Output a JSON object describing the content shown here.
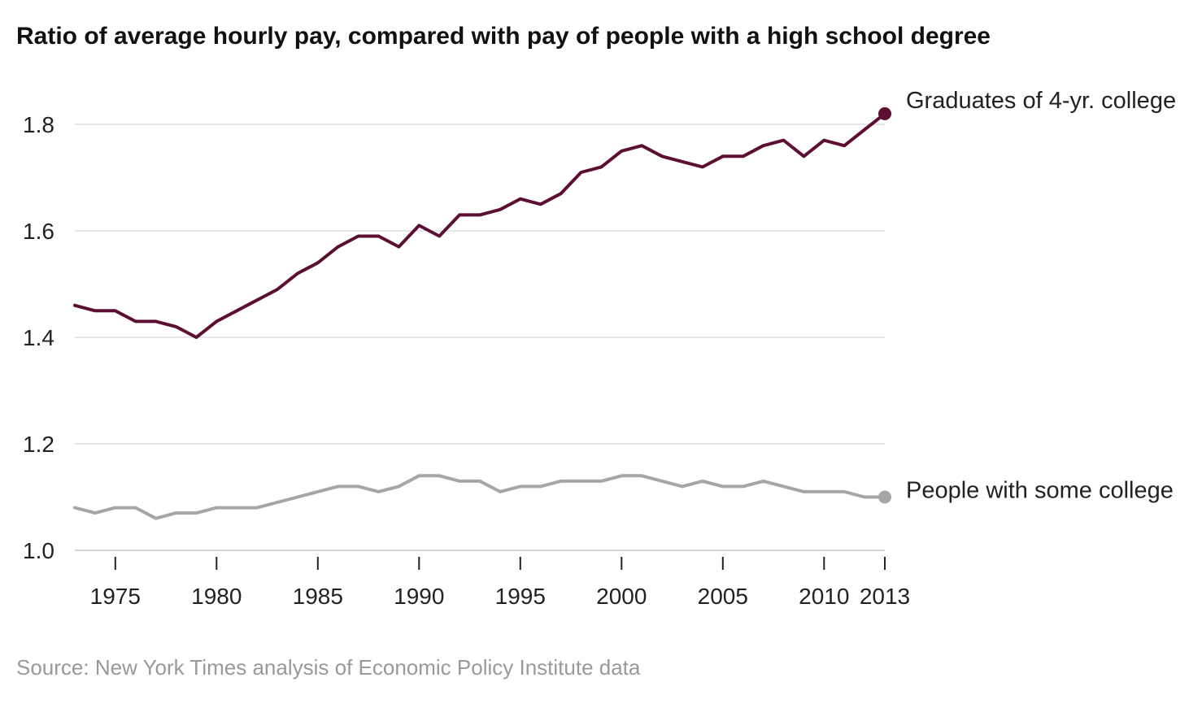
{
  "chart_data": {
    "type": "line",
    "title": "Ratio of average hourly pay, compared with pay of people with a high school degree",
    "source": "Source: New York Times analysis of Economic Policy Institute data",
    "xlim": [
      1973,
      2013
    ],
    "ylim": [
      1.0,
      1.8
    ],
    "x_ticks": [
      1975,
      1980,
      1985,
      1990,
      1995,
      2000,
      2005,
      2010,
      2013
    ],
    "x_tick_labels": [
      "1975",
      "1980",
      "1985",
      "1990",
      "1995",
      "2000",
      "2005",
      "2010",
      "2013"
    ],
    "y_ticks": [
      1.0,
      1.2,
      1.4,
      1.6,
      1.8
    ],
    "y_tick_labels": [
      "1.0",
      "1.2",
      "1.4",
      "1.6",
      "1.8"
    ],
    "grid": true,
    "x": [
      1973,
      1974,
      1975,
      1976,
      1977,
      1978,
      1979,
      1980,
      1981,
      1982,
      1983,
      1984,
      1985,
      1986,
      1987,
      1988,
      1989,
      1990,
      1991,
      1992,
      1993,
      1994,
      1995,
      1996,
      1997,
      1998,
      1999,
      2000,
      2001,
      2002,
      2003,
      2004,
      2005,
      2006,
      2007,
      2008,
      2009,
      2010,
      2011,
      2012,
      2013
    ],
    "series": [
      {
        "name": "Graduates of 4-yr. college",
        "color": "#5c0f32",
        "values": [
          1.46,
          1.45,
          1.45,
          1.43,
          1.43,
          1.42,
          1.4,
          1.43,
          1.45,
          1.47,
          1.49,
          1.52,
          1.54,
          1.57,
          1.59,
          1.59,
          1.57,
          1.61,
          1.59,
          1.63,
          1.63,
          1.64,
          1.66,
          1.65,
          1.67,
          1.71,
          1.72,
          1.75,
          1.76,
          1.74,
          1.73,
          1.72,
          1.74,
          1.74,
          1.76,
          1.77,
          1.74,
          1.77,
          1.76,
          1.79,
          1.82
        ]
      },
      {
        "name": "People with some college",
        "color": "#a6a6a6",
        "values": [
          1.08,
          1.07,
          1.08,
          1.08,
          1.06,
          1.07,
          1.07,
          1.08,
          1.08,
          1.08,
          1.09,
          1.1,
          1.11,
          1.12,
          1.12,
          1.11,
          1.12,
          1.14,
          1.14,
          1.13,
          1.13,
          1.11,
          1.12,
          1.12,
          1.13,
          1.13,
          1.13,
          1.14,
          1.14,
          1.13,
          1.12,
          1.13,
          1.12,
          1.12,
          1.13,
          1.12,
          1.11,
          1.11,
          1.11,
          1.1,
          1.1
        ]
      }
    ]
  }
}
